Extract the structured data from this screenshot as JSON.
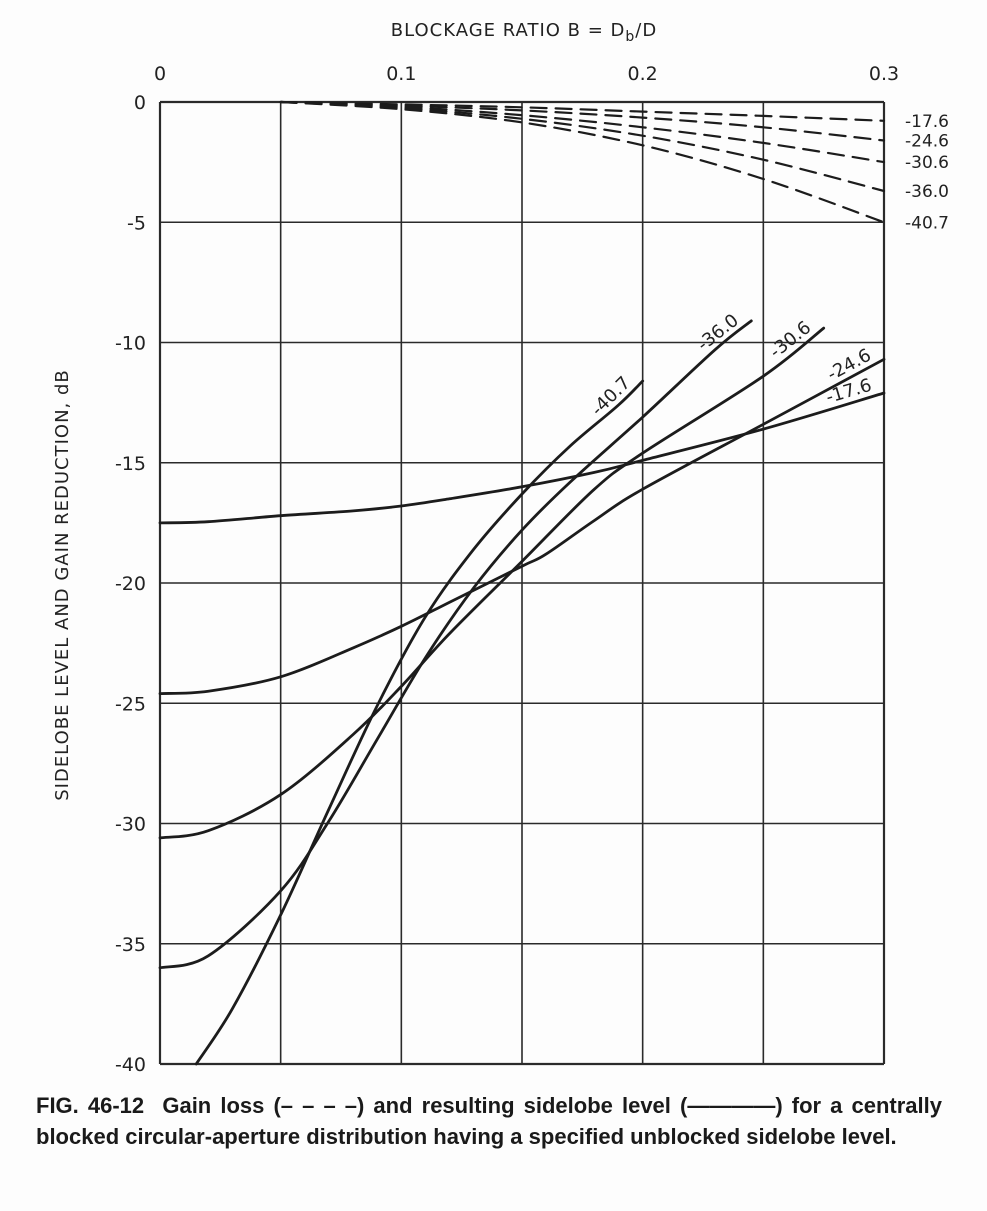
{
  "chart_data": {
    "type": "line",
    "xlabel_prefix": "BLOCKAGE RATIO B = D",
    "xlabel_sub": "b",
    "xlabel_suffix": "/D",
    "ylabel": "SIDELOBE LEVEL AND GAIN REDUCTION, dB",
    "xlim": [
      0,
      0.3
    ],
    "ylim": [
      -40,
      0
    ],
    "x_ticks": [
      "0",
      "0.1",
      "0.2",
      "0.3"
    ],
    "y_ticks": [
      "0",
      "-5",
      "-10",
      "-15",
      "-20",
      "-25",
      "-30",
      "-35",
      "-40"
    ],
    "grid": true,
    "series": [
      {
        "name": "-17.6",
        "style": "solid",
        "x": [
          0,
          0.02,
          0.05,
          0.08,
          0.1,
          0.12,
          0.15,
          0.18,
          0.2,
          0.25,
          0.3
        ],
        "y": [
          -17.5,
          -17.45,
          -17.2,
          -17.0,
          -16.8,
          -16.5,
          -16.0,
          -15.4,
          -14.9,
          -13.6,
          -12.1
        ]
      },
      {
        "name": "-24.6",
        "style": "solid",
        "x": [
          0,
          0.02,
          0.05,
          0.08,
          0.1,
          0.12,
          0.15,
          0.16,
          0.18,
          0.2,
          0.25,
          0.3
        ],
        "y": [
          -24.6,
          -24.5,
          -23.9,
          -22.7,
          -21.8,
          -20.8,
          -19.3,
          -18.8,
          -17.4,
          -16.1,
          -13.4,
          -10.7
        ]
      },
      {
        "name": "-30.6",
        "style": "solid",
        "x": [
          0,
          0.02,
          0.05,
          0.08,
          0.1,
          0.12,
          0.15,
          0.18,
          0.2,
          0.25,
          0.275
        ],
        "y": [
          -30.6,
          -30.3,
          -28.8,
          -26.3,
          -24.3,
          -22.1,
          -19.1,
          -16.1,
          -14.6,
          -11.4,
          -9.4
        ]
      },
      {
        "name": "-36.0",
        "style": "solid",
        "x": [
          0,
          0.02,
          0.05,
          0.07,
          0.09,
          0.11,
          0.13,
          0.15,
          0.17,
          0.2,
          0.23,
          0.245
        ],
        "y": [
          -36.0,
          -35.5,
          -32.8,
          -29.9,
          -26.5,
          -23.1,
          -20.2,
          -17.8,
          -15.8,
          -13.1,
          -10.3,
          -9.1
        ]
      },
      {
        "name": "-40.7",
        "style": "solid",
        "x": [
          0.015,
          0.03,
          0.05,
          0.07,
          0.09,
          0.11,
          0.13,
          0.15,
          0.17,
          0.19,
          0.2
        ],
        "y": [
          -40.0,
          -37.7,
          -33.8,
          -29.4,
          -25.1,
          -21.4,
          -18.6,
          -16.3,
          -14.3,
          -12.6,
          -11.6
        ]
      },
      {
        "name": "-17.6",
        "style": "dashed",
        "x": [
          0.05,
          0.1,
          0.15,
          0.2,
          0.25,
          0.3
        ],
        "y": [
          0,
          -0.1,
          -0.22,
          -0.4,
          -0.58,
          -0.78
        ]
      },
      {
        "name": "-24.6",
        "style": "dashed",
        "x": [
          0.05,
          0.1,
          0.15,
          0.2,
          0.25,
          0.3
        ],
        "y": [
          0,
          -0.15,
          -0.35,
          -0.65,
          -1.05,
          -1.6
        ]
      },
      {
        "name": "-30.6",
        "style": "dashed",
        "x": [
          0.05,
          0.1,
          0.15,
          0.2,
          0.25,
          0.3
        ],
        "y": [
          0,
          -0.2,
          -0.55,
          -1.05,
          -1.7,
          -2.5
        ]
      },
      {
        "name": "-36.0",
        "style": "dashed",
        "x": [
          0.05,
          0.1,
          0.15,
          0.2,
          0.25,
          0.3
        ],
        "y": [
          0,
          -0.25,
          -0.7,
          -1.4,
          -2.4,
          -3.7
        ]
      },
      {
        "name": "-40.7",
        "style": "dashed",
        "x": [
          0.05,
          0.1,
          0.15,
          0.2,
          0.25,
          0.3
        ],
        "y": [
          0,
          -0.3,
          -0.85,
          -1.8,
          -3.2,
          -5.0
        ]
      }
    ]
  },
  "caption": {
    "fig_no": "FIG. 46-12",
    "text": "Gain loss (– – – –) and resulting sidelobe level (————) for a centrally blocked circular-aperture distribution having a specified unblocked sidelobe level."
  }
}
